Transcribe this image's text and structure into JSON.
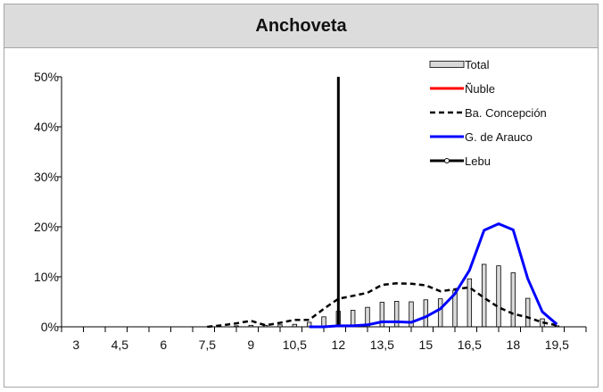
{
  "chart_data": {
    "type": "bar+line",
    "title": "Anchoveta",
    "x_ticks": [
      "3",
      "4,5",
      "6",
      "7,5",
      "9",
      "10,5",
      "12",
      "13,5",
      "15",
      "16,5",
      "18",
      "19,5"
    ],
    "x_range": [
      2.5,
      20.5
    ],
    "ylim": [
      0,
      50
    ],
    "y_ticks": [
      "0%",
      "10%",
      "20%",
      "30%",
      "40%",
      "50%"
    ],
    "vertical_marker_x": 12,
    "series": [
      {
        "name": "Total",
        "kind": "bar",
        "color": "#d9d9d9",
        "x": [
          8.5,
          9,
          9.5,
          10,
          10.5,
          11,
          11.5,
          12,
          12.5,
          13,
          13.5,
          14,
          14.5,
          15,
          15.5,
          16,
          16.5,
          17,
          17.5,
          18,
          18.5,
          19,
          19.5
        ],
        "values": [
          0.2,
          0.3,
          0.3,
          0.4,
          0.5,
          0.9,
          2.0,
          3.1,
          3.3,
          3.9,
          4.9,
          5.1,
          5.0,
          5.4,
          5.6,
          7.3,
          9.6,
          12.5,
          12.2,
          10.8,
          5.7,
          1.6,
          0.2
        ]
      },
      {
        "name": "Ñuble",
        "kind": "line",
        "color": "#ff0000",
        "style": "solid",
        "x": [],
        "values": []
      },
      {
        "name": "Ba. Concepción",
        "kind": "line",
        "color": "#000000",
        "style": "dashed",
        "x": [
          7.5,
          8,
          8.5,
          9,
          9.5,
          10,
          10.5,
          11,
          11.5,
          12,
          12.5,
          13,
          13.5,
          14,
          14.5,
          15,
          15.5,
          16,
          16.5,
          17,
          17.5,
          18,
          18.5,
          19,
          19.5
        ],
        "values": [
          0.0,
          0.3,
          0.7,
          1.2,
          0.3,
          0.8,
          1.4,
          1.4,
          3.6,
          5.6,
          6.2,
          6.8,
          8.4,
          8.7,
          8.6,
          8.3,
          7.1,
          7.5,
          7.9,
          5.8,
          3.9,
          2.6,
          1.9,
          0.9,
          0.3
        ]
      },
      {
        "name": "G. de Arauco",
        "kind": "line",
        "color": "#0000ff",
        "style": "solid",
        "x": [
          11,
          11.5,
          12,
          12.5,
          13,
          13.5,
          14,
          14.5,
          15,
          15.5,
          16,
          16.5,
          17,
          17.5,
          18,
          18.5,
          19,
          19.5
        ],
        "values": [
          0.0,
          0.0,
          0.2,
          0.2,
          0.4,
          1.0,
          1.0,
          0.9,
          2.0,
          3.6,
          6.6,
          11.3,
          19.3,
          20.6,
          19.4,
          9.6,
          3.0,
          0.5
        ]
      },
      {
        "name": "Lebu",
        "kind": "line",
        "color": "#000000",
        "style": "solid-marker",
        "x": [],
        "values": []
      }
    ]
  }
}
